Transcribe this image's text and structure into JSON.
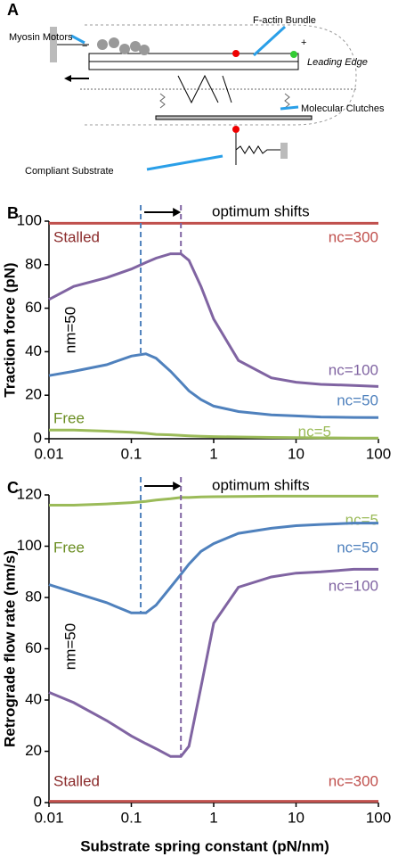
{
  "diagram": {
    "panel": "A",
    "labels": {
      "myosin": "Myosin Motors",
      "factin": "F-actin Bundle",
      "leading": "Leading Edge",
      "clutches": "Molecular Clutches",
      "substrate": "Compliant Substrate",
      "minus": "−",
      "plus": "+"
    }
  },
  "chart_data": [
    {
      "type": "line",
      "panel": "B",
      "y_label": "Traction force (pN)",
      "xscale": "log",
      "xlim": [
        0.01,
        100
      ],
      "xticks": [
        0.01,
        0.1,
        1,
        10,
        100
      ],
      "ylim": [
        0,
        100
      ],
      "yticks": [
        0,
        20,
        40,
        60,
        80,
        100
      ],
      "x": [
        0.01,
        0.02,
        0.05,
        0.1,
        0.15,
        0.2,
        0.3,
        0.4,
        0.5,
        0.7,
        1,
        2,
        5,
        10,
        20,
        50,
        100
      ],
      "series": [
        {
          "name": "nc=300",
          "color": "#c0504d",
          "values": [
            99,
            99,
            99,
            99,
            99,
            99,
            99,
            99,
            99,
            99,
            99,
            99,
            99,
            99,
            99,
            99,
            99
          ]
        },
        {
          "name": "nc=100",
          "color": "#8064a2",
          "values": [
            64,
            70,
            74,
            78,
            81,
            83,
            85,
            85,
            82,
            70,
            55,
            36,
            28,
            26,
            25,
            24.5,
            24
          ]
        },
        {
          "name": "nc=50",
          "color": "#4f81bd",
          "values": [
            29,
            31,
            34,
            38,
            39,
            37,
            31,
            26,
            22,
            18,
            15,
            12.5,
            11,
            10.5,
            10,
            9.8,
            9.7
          ]
        },
        {
          "name": "nc=5",
          "color": "#9bbb59",
          "values": [
            4,
            4,
            3.5,
            3,
            2.5,
            2,
            1.8,
            1.5,
            1.3,
            1.1,
            1,
            0.8,
            0.6,
            0.5,
            0.4,
            0.3,
            0.3
          ]
        }
      ],
      "annotations": [
        {
          "text": "Stalled",
          "color": "#8b2b2b"
        },
        {
          "text": "Free",
          "color": "#6b8e23"
        },
        {
          "text": "nm=50",
          "color": "#000000"
        },
        {
          "text": "optimum shifts",
          "color": "#000000"
        }
      ],
      "optimum_lines": [
        {
          "x": 0.13,
          "y": 39,
          "color": "#4f81bd"
        },
        {
          "x": 0.4,
          "y": 85,
          "color": "#8064a2"
        }
      ]
    },
    {
      "type": "line",
      "panel": "C",
      "y_label": "Retrograde flow rate (nm/s)",
      "x_label": "Substrate spring constant (pN/nm)",
      "xscale": "log",
      "xlim": [
        0.01,
        100
      ],
      "xticks": [
        0.01,
        0.1,
        1,
        10,
        100
      ],
      "ylim": [
        0,
        120
      ],
      "yticks": [
        0,
        20,
        40,
        60,
        80,
        100,
        120
      ],
      "x": [
        0.01,
        0.02,
        0.05,
        0.1,
        0.15,
        0.2,
        0.3,
        0.4,
        0.5,
        0.7,
        1,
        2,
        5,
        10,
        20,
        50,
        100
      ],
      "series": [
        {
          "name": "nc=5",
          "color": "#9bbb59",
          "values": [
            116,
            116,
            116.5,
            117,
            117.5,
            118,
            118.5,
            119,
            119,
            119.2,
            119.3,
            119.4,
            119.5,
            119.5,
            119.5,
            119.5,
            119.5
          ]
        },
        {
          "name": "nc=50",
          "color": "#4f81bd",
          "values": [
            85,
            82,
            78,
            74,
            74,
            77,
            84,
            89,
            93,
            98,
            101,
            105,
            107,
            108,
            108.5,
            109,
            109
          ]
        },
        {
          "name": "nc=100",
          "color": "#8064a2",
          "values": [
            43,
            39,
            32,
            26,
            23,
            21,
            18,
            18,
            22,
            45,
            70,
            84,
            88,
            89.5,
            90,
            91,
            91
          ]
        },
        {
          "name": "nc=300",
          "color": "#c0504d",
          "values": [
            0.5,
            0.5,
            0.5,
            0.5,
            0.5,
            0.5,
            0.5,
            0.5,
            0.5,
            0.5,
            0.5,
            0.5,
            0.5,
            0.5,
            0.5,
            0.5,
            0.5
          ]
        }
      ],
      "annotations": [
        {
          "text": "Free",
          "color": "#6b8e23"
        },
        {
          "text": "Stalled",
          "color": "#8b2b2b"
        },
        {
          "text": "nm=50",
          "color": "#000000"
        },
        {
          "text": "optimum shifts",
          "color": "#000000"
        }
      ],
      "optimum_lines": [
        {
          "x": 0.13,
          "y": 74,
          "color": "#4f81bd"
        },
        {
          "x": 0.4,
          "y": 18,
          "color": "#8064a2"
        }
      ]
    }
  ]
}
